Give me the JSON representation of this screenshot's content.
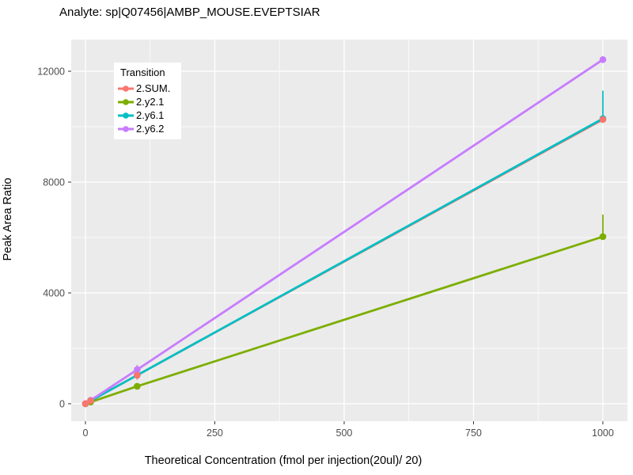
{
  "title": "Analyte: sp|Q07456|AMBP_MOUSE.EVEPTSIAR",
  "chart_data": {
    "type": "line",
    "title": "Analyte: sp|Q07456|AMBP_MOUSE.EVEPTSIAR",
    "xlabel": "Theoretical Concentration (fmol per injection(20ul)/ 20)",
    "ylabel": "Peak Area Ratio",
    "x_ticks": [
      0,
      250,
      500,
      750,
      1000
    ],
    "y_ticks": [
      0,
      4000,
      8000,
      12000
    ],
    "xlim": [
      -27.5,
      1047.5
    ],
    "ylim": [
      -629,
      13143
    ],
    "grid": "white major+minor gridlines on gray panel",
    "panel_bg": "#EBEBEB",
    "grid_color": "#FFFFFF",
    "tick_label_color": "#4D4D4D",
    "legend": {
      "title": "Transition",
      "position": "inside top-left"
    },
    "series": [
      {
        "name": "2.SUM.",
        "color": "#F8766D",
        "x": [
          0,
          10,
          100,
          1000
        ],
        "y": [
          0,
          110,
          1030,
          10260
        ],
        "error_bars": [
          {
            "x": 100,
            "ymin": 870,
            "ymax": 1150
          }
        ]
      },
      {
        "name": "2.y2.1",
        "color": "#7CAE00",
        "x": [
          0,
          10,
          100,
          1000
        ],
        "y": [
          0,
          60,
          630,
          6030
        ],
        "error_bars": [
          {
            "x": 1000,
            "ymin": 6030,
            "ymax": 6830
          }
        ]
      },
      {
        "name": "2.y6.1",
        "color": "#00BFC4",
        "x": [
          0,
          10,
          100,
          1000
        ],
        "y": [
          0,
          105,
          1030,
          10290
        ],
        "error_bars": [
          {
            "x": 1000,
            "ymin": 10290,
            "ymax": 11300
          }
        ]
      },
      {
        "name": "2.y6.2",
        "color": "#C77CFF",
        "x": [
          0,
          10,
          100,
          1000
        ],
        "y": [
          0,
          125,
          1230,
          12420
        ],
        "error_bars": [
          {
            "x": 100,
            "ymin": 1140,
            "ymax": 1400
          }
        ]
      }
    ],
    "point_draw_order": [
      2,
      1,
      3,
      0
    ]
  }
}
